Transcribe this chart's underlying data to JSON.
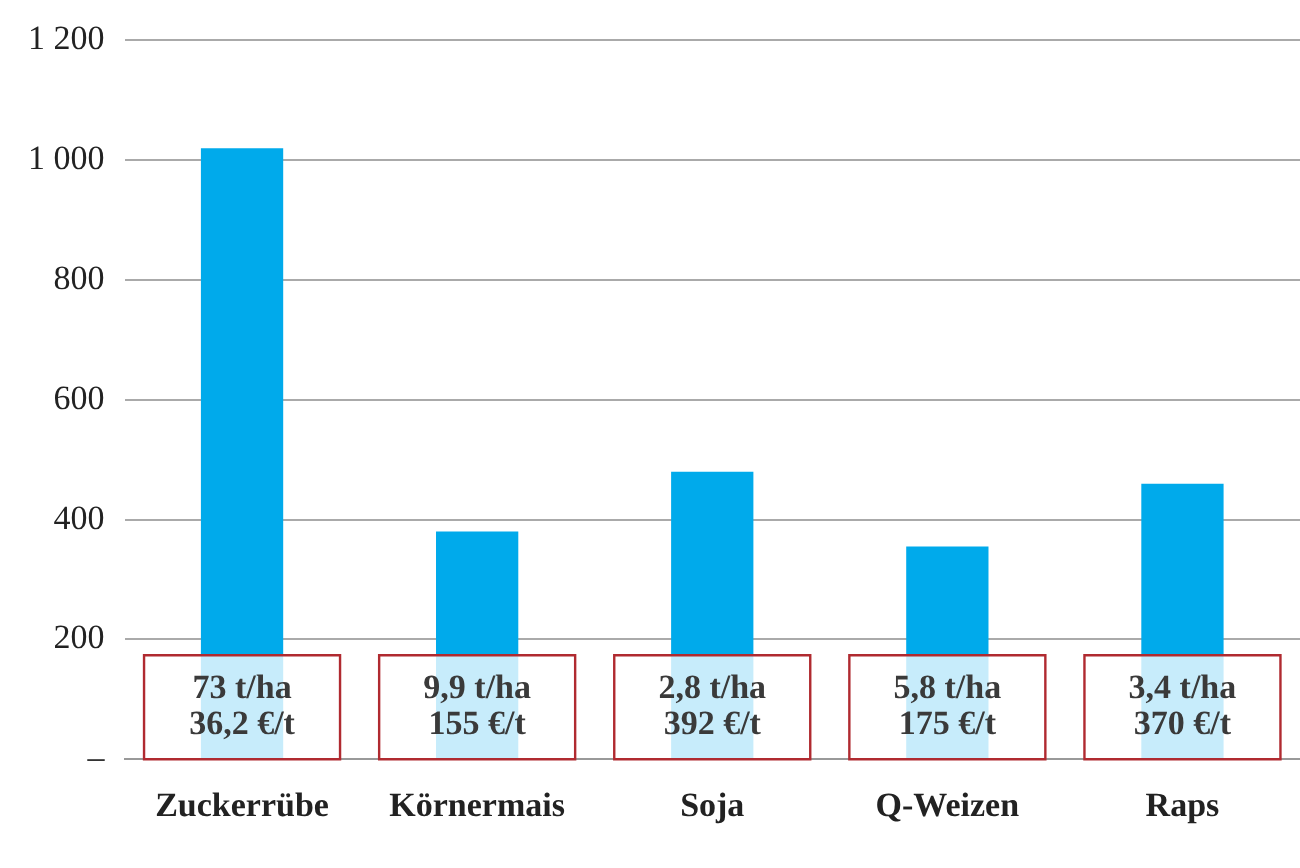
{
  "chart_data": {
    "type": "bar",
    "categories": [
      "Zuckerrübe",
      "Körnermais",
      "Soja",
      "Q-Weizen",
      "Raps"
    ],
    "values": [
      1020,
      380,
      480,
      355,
      460
    ],
    "color": "#00aaeb",
    "ylim": [
      0,
      1200
    ],
    "yticks": [
      {
        "value": 0,
        "label": "–"
      },
      {
        "value": 200,
        "label": "200"
      },
      {
        "value": 400,
        "label": "400"
      },
      {
        "value": 600,
        "label": "600"
      },
      {
        "value": 800,
        "label": "800"
      },
      {
        "value": 1000,
        "label": "1 000"
      },
      {
        "value": 1200,
        "label": "1 200"
      }
    ],
    "grid": "y",
    "legend": false,
    "annotations": [
      "73 t/ha\n36,2 €/t",
      "9,9 t/ha\n155 €/t",
      "2,8 t/ha\n392 €/t",
      "5,8 t/ha\n175 €/t",
      "3,4 t/ha\n370 €/t"
    ]
  }
}
